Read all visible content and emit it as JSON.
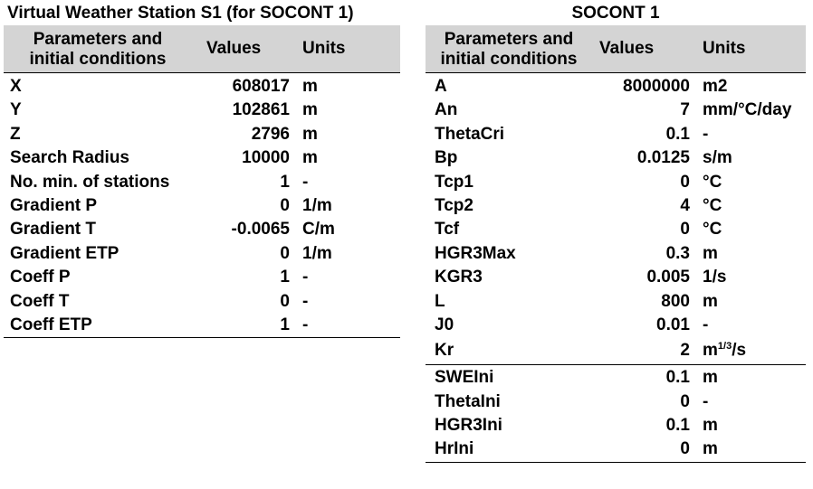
{
  "left": {
    "title": "Virtual Weather Station S1 (for SOCONT 1)",
    "header": {
      "param": "Parameters and\ninitial conditions",
      "value": "Values",
      "unit": "Units"
    },
    "rows": [
      {
        "param": "X",
        "value": "608017",
        "unit": "m"
      },
      {
        "param": "Y",
        "value": "102861",
        "unit": "m"
      },
      {
        "param": "Z",
        "value": "2796",
        "unit": "m"
      },
      {
        "param": "Search Radius",
        "value": "10000",
        "unit": "m"
      },
      {
        "param": "No. min. of stations",
        "value": "1",
        "unit": "-"
      },
      {
        "param": "Gradient P",
        "value": "0",
        "unit": "1/m"
      },
      {
        "param": "Gradient T",
        "value": "-0.0065",
        "unit": "C/m"
      },
      {
        "param": "Gradient ETP",
        "value": "0",
        "unit": "1/m"
      },
      {
        "param": "Coeff P",
        "value": "1",
        "unit": "-"
      },
      {
        "param": "Coeff T",
        "value": "0",
        "unit": "-"
      },
      {
        "param": "Coeff ETP",
        "value": "1",
        "unit": "-"
      }
    ]
  },
  "right": {
    "title": "SOCONT 1",
    "header": {
      "param": "Parameters and\ninitial conditions",
      "value": "Values",
      "unit": "Units"
    },
    "rows": [
      {
        "param": "A",
        "value": "8000000",
        "unit": "m2"
      },
      {
        "param": "An",
        "value": "7",
        "unit": "mm/°C/day"
      },
      {
        "param": "ThetaCri",
        "value": "0.1",
        "unit": "-"
      },
      {
        "param": "Bp",
        "value": "0.0125",
        "unit": "s/m"
      },
      {
        "param": "Tcp1",
        "value": "0",
        "unit": "°C"
      },
      {
        "param": "Tcp2",
        "value": "4",
        "unit": "°C"
      },
      {
        "param": "Tcf",
        "value": "0",
        "unit": "°C"
      },
      {
        "param": "HGR3Max",
        "value": "0.3",
        "unit": "m"
      },
      {
        "param": "KGR3",
        "value": "0.005",
        "unit": "1/s"
      },
      {
        "param": "L",
        "value": "800",
        "unit": "m"
      },
      {
        "param": "J0",
        "value": "0.01",
        "unit": "-"
      },
      {
        "param": "Kr",
        "value": "2",
        "unit_base": "m",
        "unit_sup": "1/3",
        "unit_tail": "/s"
      }
    ],
    "initial_rows": [
      {
        "param": "SWEIni",
        "value": "0.1",
        "unit": "m"
      },
      {
        "param": "ThetaIni",
        "value": "0",
        "unit": "-"
      },
      {
        "param": "HGR3Ini",
        "value": "0.1",
        "unit": "m"
      },
      {
        "param": "HrIni",
        "value": "0",
        "unit": "m"
      }
    ]
  }
}
